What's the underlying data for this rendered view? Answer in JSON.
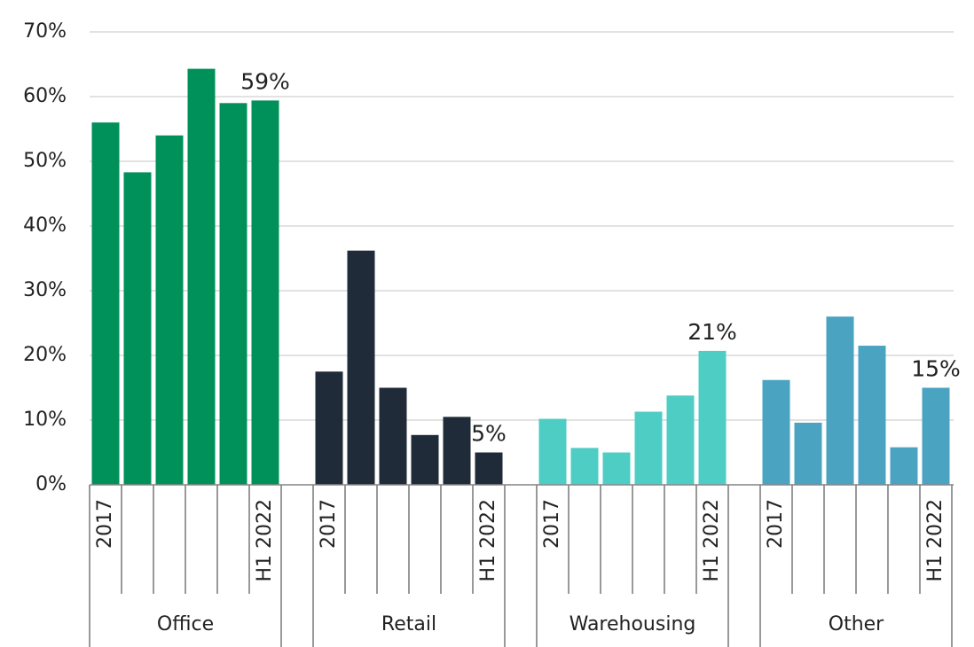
{
  "chart_data": {
    "type": "bar",
    "ylim": [
      0,
      70
    ],
    "yticks": [
      {
        "value": 0,
        "label": "0%"
      },
      {
        "value": 10,
        "label": "10%"
      },
      {
        "value": 20,
        "label": "20%"
      },
      {
        "value": 30,
        "label": "30%"
      },
      {
        "value": 40,
        "label": "40%"
      },
      {
        "value": 50,
        "label": "50%"
      },
      {
        "value": 60,
        "label": "60%"
      },
      {
        "value": 70,
        "label": "70%"
      }
    ],
    "grid": true,
    "groups": [
      {
        "name": "Office",
        "color": "#00915a",
        "categories": [
          "2017",
          null,
          null,
          null,
          null,
          "H1 2022"
        ],
        "values": [
          56,
          48.3,
          54,
          64.3,
          59,
          59.4
        ],
        "value_labels": [
          null,
          null,
          null,
          null,
          null,
          "59%"
        ]
      },
      {
        "name": "Retail",
        "color": "#1f2b38",
        "categories": [
          "2017",
          null,
          null,
          null,
          null,
          "H1 2022"
        ],
        "values": [
          17.5,
          36.2,
          15,
          7.7,
          10.5,
          5
        ],
        "value_labels": [
          null,
          null,
          null,
          null,
          null,
          "5%"
        ]
      },
      {
        "name": "Warehousing",
        "color": "#4ecdc4",
        "categories": [
          "2017",
          null,
          null,
          null,
          null,
          "H1 2022"
        ],
        "values": [
          10.2,
          5.7,
          5,
          11.3,
          13.8,
          20.7
        ],
        "value_labels": [
          null,
          null,
          null,
          null,
          null,
          "21%"
        ]
      },
      {
        "name": "Other",
        "color": "#4aa3c0",
        "categories": [
          "2017",
          null,
          null,
          null,
          null,
          "H1 2022"
        ],
        "values": [
          16.2,
          9.6,
          26,
          21.5,
          5.8,
          15
        ],
        "value_labels": [
          null,
          null,
          null,
          null,
          null,
          "15%"
        ]
      }
    ]
  }
}
